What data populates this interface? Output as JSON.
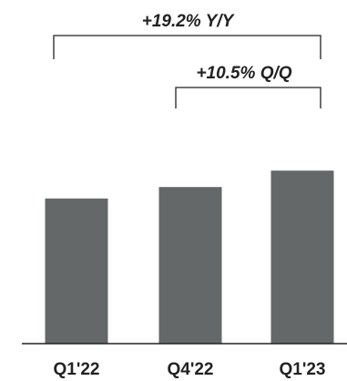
{
  "chart_data": {
    "type": "bar",
    "categories": [
      "Q1'22",
      "Q4'22",
      "Q1'23"
    ],
    "values": [
      100,
      107.9,
      119.2
    ],
    "ylim": [
      0,
      130
    ],
    "annotations": [
      {
        "text": "+19.2% Y/Y",
        "from": "Q1'22",
        "to": "Q1'23"
      },
      {
        "text": "+10.5% Q/Q",
        "from": "Q4'22",
        "to": "Q1'23"
      }
    ],
    "colors": {
      "bar": "#656869",
      "text": "#222222"
    }
  }
}
